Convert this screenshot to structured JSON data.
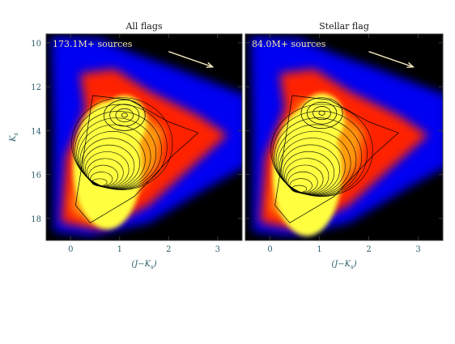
{
  "colors": {
    "background": "#000000",
    "density_low": "#0000ff",
    "density_mid": "#ff2000",
    "density_high": "#ffff40",
    "contour": "#000000",
    "arrow": "#f2e6c0",
    "label_text": "#f2e6a8",
    "axis_text": "#2b5c6a"
  },
  "chart_data": [
    {
      "type": "heatmap",
      "title": "All flags",
      "annotation": "173.1M+ sources",
      "xlabel": "(J−K",
      "xlabel_sub": "s",
      "xlabel_close": ")",
      "ylabel": "K",
      "ylabel_sub": "s",
      "xlim": [
        -0.5,
        3.5
      ],
      "ylim": [
        19,
        9.6
      ],
      "x_ticks": [
        0,
        1,
        2,
        3
      ],
      "x_tick_labels": [
        "0",
        "1",
        "2",
        "3"
      ],
      "y_ticks": [
        10,
        12,
        14,
        16,
        18
      ],
      "y_tick_labels": [
        "10",
        "12",
        "14",
        "16",
        "18"
      ],
      "y_axis_shown": true,
      "reddening_vector": {
        "from": [
          2.0,
          10.4
        ],
        "to": [
          2.9,
          11.1
        ]
      },
      "density_peak": {
        "x": 0.5,
        "y": 16.5
      },
      "secondary_peak": {
        "x": 1.1,
        "y": 13.3
      }
    },
    {
      "type": "heatmap",
      "title": "Stellar flag",
      "annotation": "84.0M+ sources",
      "xlabel": "(J−K",
      "xlabel_sub": "s",
      "xlabel_close": ")",
      "xlim": [
        -0.5,
        3.5
      ],
      "ylim": [
        19,
        9.6
      ],
      "x_ticks": [
        0,
        1,
        2,
        3
      ],
      "x_tick_labels": [
        "0",
        "1",
        "2",
        "3"
      ],
      "y_ticks": [
        10,
        12,
        14,
        16,
        18
      ],
      "y_axis_shown": false,
      "reddening_vector": {
        "from": [
          2.0,
          10.4
        ],
        "to": [
          2.9,
          11.1
        ]
      },
      "density_peak": {
        "x": 0.5,
        "y": 16.8
      },
      "secondary_peak": {
        "x": 1.05,
        "y": 13.2
      }
    }
  ]
}
